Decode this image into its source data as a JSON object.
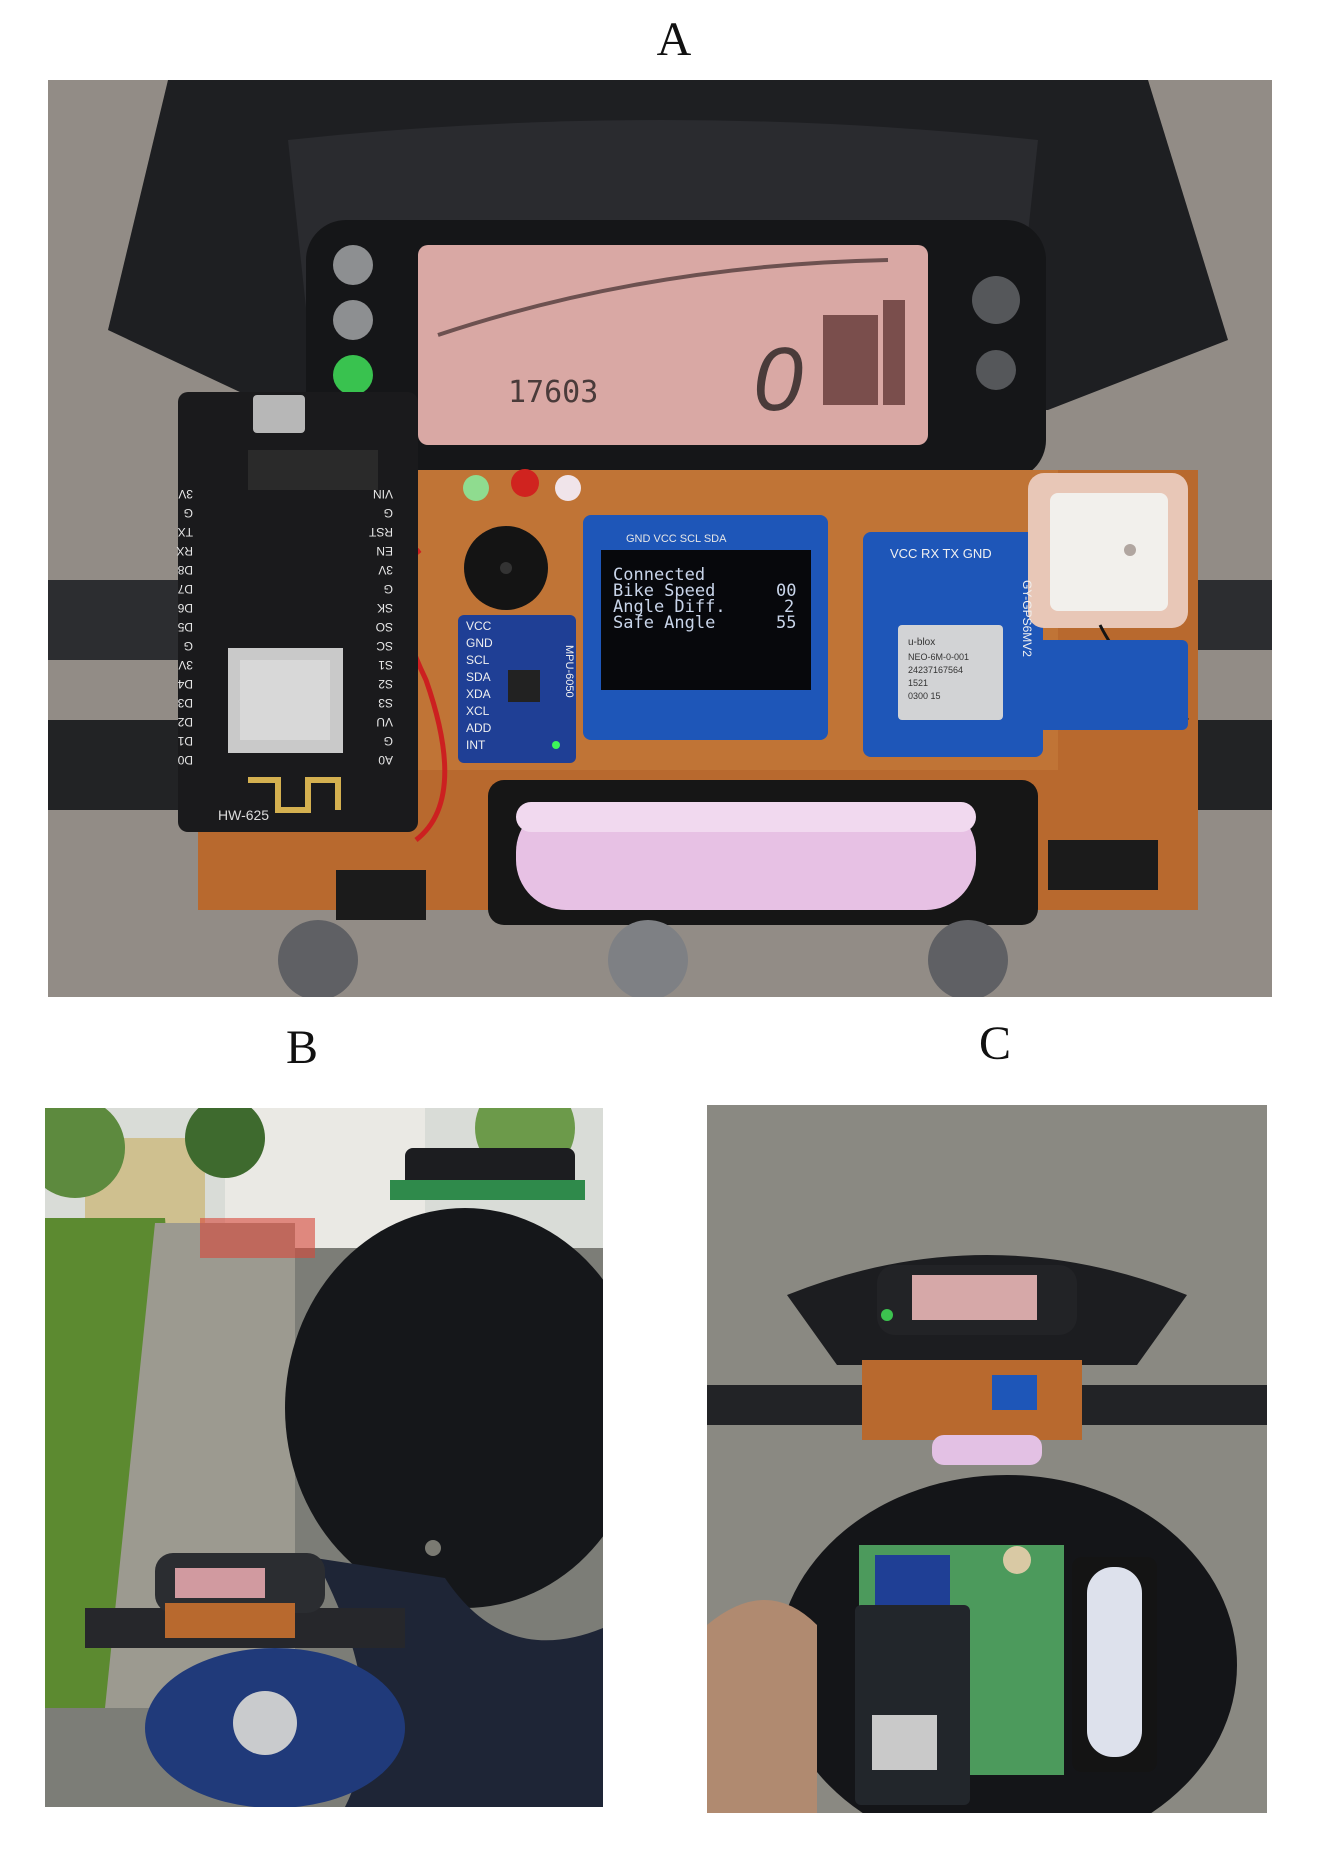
{
  "labels": {
    "a": "A",
    "b": "B",
    "c": "C"
  },
  "photo_a": {
    "odometer": "17603",
    "speed_digit": "0",
    "oled": {
      "pins": "GND VCC SCL SDA",
      "lines": [
        "Connected",
        "Bike Speed",
        "Angle Diff.",
        "Safe Angle"
      ],
      "values": [
        "00",
        "2",
        "55"
      ]
    },
    "nodemcu_label": "HW-625",
    "nodemcu_pins_left": [
      "3V",
      "G",
      "TX",
      "RX",
      "D8",
      "D7",
      "D6",
      "D5",
      "G",
      "3V",
      "D4",
      "D3",
      "D2",
      "D1",
      "D0"
    ],
    "nodemcu_pins_right": [
      "VIN",
      "G",
      "RST",
      "EN",
      "3V",
      "G",
      "SK",
      "SO",
      "SC",
      "S1",
      "S2",
      "S3",
      "VU",
      "G",
      "A0"
    ],
    "mpu_pins": [
      "VCC",
      "GND",
      "SCL",
      "SDA",
      "XDA",
      "XCL",
      "ADD",
      "INT"
    ],
    "mpu_label": "MPU-6050",
    "gps_pins": "VCC RX TX GND",
    "gps_label": "GY-GPS6MV2",
    "gps_chip": [
      "u-blox",
      "NEO-6M-0-001",
      "24237167564",
      "1521",
      "0300 15"
    ]
  }
}
